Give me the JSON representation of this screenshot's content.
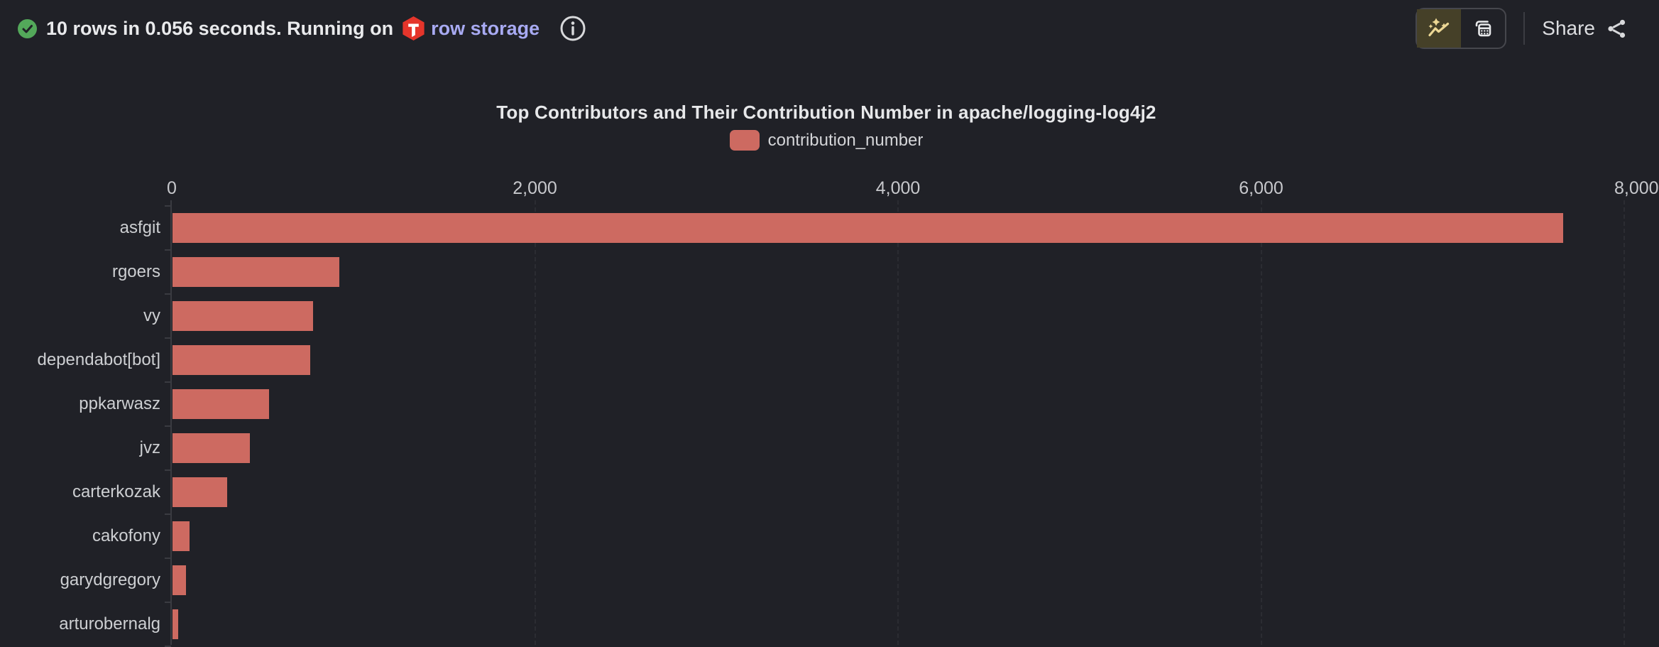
{
  "header": {
    "status_text": "10 rows in 0.056 seconds. Running on",
    "engine_name": "row storage",
    "share_label": "Share"
  },
  "icons": {
    "status": "check-circle-icon",
    "engine": "tidb-logo-icon",
    "info": "info-icon",
    "chart_view": "sparkle-chart-icon",
    "table_view": "table-icon",
    "share": "share-icon"
  },
  "view_toggle": {
    "active": "chart-view"
  },
  "colors": {
    "background": "#202127",
    "bar": "#cd6a61",
    "success_green": "#53a85a",
    "engine_link": "#a8aaf2",
    "logo_red": "#e5352b",
    "active_toggle_bg": "#454028",
    "active_toggle_icon": "#ecd795"
  },
  "chart_data": {
    "type": "bar",
    "orientation": "horizontal",
    "title": "Top Contributors and Their Contribution Number in apache/logging-log4j2",
    "series_name": "contribution_number",
    "legend_position": "top",
    "categories": [
      "asfgit",
      "rgoers",
      "vy",
      "dependabot[bot]",
      "ppkarwasz",
      "jvz",
      "carterkozak",
      "cakofony",
      "garydgregory",
      "arturobernalg"
    ],
    "values": [
      7660,
      919,
      775,
      759,
      532,
      426,
      301,
      94,
      74,
      31
    ],
    "xlim": [
      0,
      8000
    ],
    "x_ticks": [
      0,
      2000,
      4000,
      6000,
      8000
    ],
    "x_tick_labels": [
      "0",
      "2,000",
      "4,000",
      "6,000",
      "8,000"
    ],
    "grid": "vertical-dashed"
  }
}
